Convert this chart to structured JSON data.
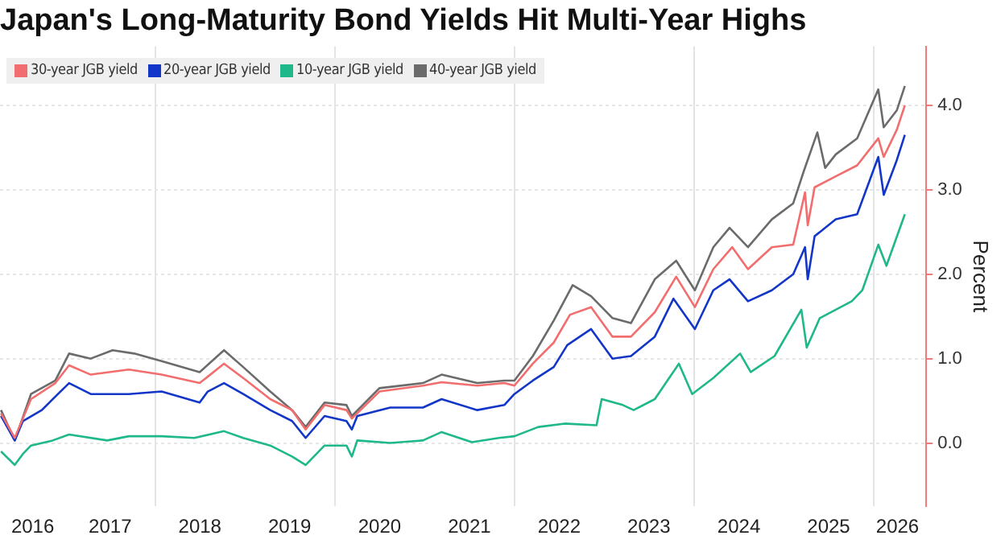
{
  "chart_data": {
    "type": "line",
    "title": "Japan's Long-Maturity Bond Yields Hit Multi-Year Highs",
    "ylabel": "Percent",
    "xlim": [
      "2016-04-10",
      "2026-08-03"
    ],
    "xticks": [
      {
        "value": "2016-08-21",
        "label": "2016"
      },
      {
        "value": "2017-07-02",
        "label": "2017"
      },
      {
        "value": "2018-01-01",
        "label": null
      },
      {
        "value": "2018-07-02",
        "label": "2018"
      },
      {
        "value": "2019-07-02",
        "label": "2019"
      },
      {
        "value": "2020-01-01",
        "label": null
      },
      {
        "value": "2020-07-02",
        "label": "2020"
      },
      {
        "value": "2021-07-02",
        "label": "2021"
      },
      {
        "value": "2022-01-01",
        "label": null
      },
      {
        "value": "2022-07-02",
        "label": "2022"
      },
      {
        "value": "2023-07-02",
        "label": "2023"
      },
      {
        "value": "2024-01-01",
        "label": null
      },
      {
        "value": "2024-07-02",
        "label": "2024"
      },
      {
        "value": "2025-07-02",
        "label": "2025"
      },
      {
        "value": "2026-01-01",
        "label": null
      },
      {
        "value": "2026-04-08",
        "label": "2026"
      }
    ],
    "ylim": [
      -0.75,
      4.7
    ],
    "yticks": [
      {
        "value": 0,
        "label": "0.0"
      },
      {
        "value": 1,
        "label": "1.0"
      },
      {
        "value": 2,
        "label": "2.0"
      },
      {
        "value": 3,
        "label": "3.0"
      },
      {
        "value": 4,
        "label": "4.0"
      }
    ],
    "grid": true,
    "legend": "top left",
    "series": [
      {
        "name": "30-year JGB yield",
        "color": "#f26d6d",
        "x": [
          "2016-04-14",
          "2016-06-09",
          "2016-08-14",
          "2016-11-21",
          "2017-01-16",
          "2017-04-14",
          "2017-09-16",
          "2018-01-27",
          "2018-07-01",
          "2018-10-08",
          "2018-12-25",
          "2019-04-14",
          "2019-07-12",
          "2019-09-05",
          "2019-11-21",
          "2020-02-18",
          "2020-03-11",
          "2020-07-01",
          "2020-12-25",
          "2021-03-11",
          "2021-08-03",
          "2021-11-21",
          "2022-01-01",
          "2022-03-17",
          "2022-06-10",
          "2022-08-15",
          "2022-11-09",
          "2023-02-04",
          "2023-04-20",
          "2023-07-26",
          "2023-10-21",
          "2024-01-05",
          "2024-03-20",
          "2024-06-05",
          "2024-08-08",
          "2024-11-13",
          "2025-02-08",
          "2025-03-28",
          "2025-04-08",
          "2025-05-06",
          "2025-07-31",
          "2025-10-26",
          "2026-01-20",
          "2026-02-11",
          "2026-04-05",
          "2026-05-08"
        ],
        "values": [
          0.35,
          0.06,
          0.52,
          0.71,
          0.92,
          0.81,
          0.87,
          0.81,
          0.71,
          0.94,
          0.77,
          0.52,
          0.39,
          0.16,
          0.45,
          0.39,
          0.29,
          0.61,
          0.68,
          0.72,
          0.68,
          0.71,
          0.68,
          0.94,
          1.19,
          1.52,
          1.61,
          1.26,
          1.26,
          1.55,
          1.97,
          1.61,
          2.06,
          2.32,
          2.06,
          2.32,
          2.35,
          2.97,
          2.58,
          3.03,
          3.16,
          3.29,
          3.61,
          3.39,
          3.71,
          4.0
        ]
      },
      {
        "name": "20-year JGB yield",
        "color": "#1236c8",
        "x": [
          "2016-04-14",
          "2016-06-09",
          "2016-07-12",
          "2016-09-27",
          "2016-11-21",
          "2017-01-16",
          "2017-04-14",
          "2017-09-16",
          "2018-01-27",
          "2018-07-01",
          "2018-08-03",
          "2018-10-08",
          "2018-12-25",
          "2019-04-14",
          "2019-07-12",
          "2019-09-05",
          "2019-11-21",
          "2020-02-18",
          "2020-03-11",
          "2020-04-02",
          "2020-08-14",
          "2020-12-25",
          "2021-03-11",
          "2021-08-03",
          "2021-11-21",
          "2022-01-01",
          "2022-03-17",
          "2022-06-10",
          "2022-08-04",
          "2022-11-09",
          "2023-02-04",
          "2023-04-20",
          "2023-07-26",
          "2023-10-10",
          "2024-01-05",
          "2024-03-20",
          "2024-05-25",
          "2024-08-08",
          "2024-11-13",
          "2025-02-08",
          "2025-03-28",
          "2025-04-08",
          "2025-05-06",
          "2025-07-31",
          "2025-10-26",
          "2026-01-20",
          "2026-02-11",
          "2026-04-05",
          "2026-05-08"
        ],
        "values": [
          0.32,
          0.03,
          0.26,
          0.39,
          0.55,
          0.71,
          0.58,
          0.58,
          0.61,
          0.48,
          0.61,
          0.71,
          0.58,
          0.39,
          0.26,
          0.06,
          0.32,
          0.26,
          0.16,
          0.32,
          0.42,
          0.42,
          0.52,
          0.39,
          0.45,
          0.58,
          0.74,
          0.9,
          1.16,
          1.35,
          1.0,
          1.03,
          1.26,
          1.71,
          1.35,
          1.81,
          1.94,
          1.68,
          1.81,
          2.0,
          2.32,
          1.94,
          2.45,
          2.65,
          2.71,
          3.39,
          2.94,
          3.35,
          3.65
        ]
      },
      {
        "name": "10-year JGB yield",
        "color": "#1fb88a",
        "x": [
          "2016-04-14",
          "2016-06-09",
          "2016-07-12",
          "2016-08-14",
          "2016-11-10",
          "2017-01-16",
          "2017-06-20",
          "2017-09-16",
          "2018-01-27",
          "2018-06-09",
          "2018-10-08",
          "2018-12-25",
          "2019-04-14",
          "2019-07-12",
          "2019-09-05",
          "2019-11-21",
          "2020-02-18",
          "2020-03-11",
          "2020-04-02",
          "2020-08-14",
          "2020-12-25",
          "2021-03-11",
          "2021-07-12",
          "2021-10-30",
          "2022-01-01",
          "2022-04-08",
          "2022-07-24",
          "2022-12-01",
          "2022-12-22",
          "2023-03-18",
          "2023-05-01",
          "2023-07-26",
          "2023-11-01",
          "2023-12-25",
          "2024-03-20",
          "2024-07-07",
          "2024-08-19",
          "2024-11-24",
          "2025-03-13",
          "2025-04-04",
          "2025-05-27",
          "2025-10-04",
          "2025-11-16",
          "2026-01-20",
          "2026-02-22",
          "2026-05-08"
        ],
        "values": [
          -0.1,
          -0.26,
          -0.13,
          -0.03,
          0.03,
          0.1,
          0.03,
          0.08,
          0.08,
          0.06,
          0.14,
          0.06,
          -0.03,
          -0.16,
          -0.26,
          -0.03,
          -0.03,
          -0.16,
          0.03,
          0.0,
          0.03,
          0.13,
          0.01,
          0.06,
          0.08,
          0.19,
          0.23,
          0.21,
          0.52,
          0.45,
          0.39,
          0.52,
          0.94,
          0.58,
          0.77,
          1.06,
          0.84,
          1.03,
          1.58,
          1.13,
          1.48,
          1.68,
          1.81,
          2.35,
          2.1,
          2.71
        ]
      },
      {
        "name": "40-year JGB yield",
        "color": "#6b6b6b",
        "x": [
          "2016-04-14",
          "2016-06-09",
          "2016-08-14",
          "2016-11-21",
          "2017-01-16",
          "2017-04-14",
          "2017-07-12",
          "2017-10-08",
          "2018-01-27",
          "2018-07-01",
          "2018-10-08",
          "2018-12-25",
          "2019-04-14",
          "2019-07-12",
          "2019-09-05",
          "2019-11-21",
          "2020-02-18",
          "2020-03-11",
          "2020-07-01",
          "2020-12-25",
          "2021-03-11",
          "2021-08-03",
          "2021-11-21",
          "2022-01-01",
          "2022-03-17",
          "2022-06-10",
          "2022-08-26",
          "2022-11-09",
          "2023-02-04",
          "2023-04-20",
          "2023-07-26",
          "2023-10-21",
          "2024-01-05",
          "2024-03-20",
          "2024-05-25",
          "2024-08-08",
          "2024-11-13",
          "2025-02-08",
          "2025-03-24",
          "2025-05-17",
          "2025-06-18",
          "2025-07-31",
          "2025-10-26",
          "2026-01-20",
          "2026-02-11",
          "2026-04-05",
          "2026-05-08"
        ],
        "values": [
          0.39,
          0.03,
          0.58,
          0.74,
          1.06,
          1.0,
          1.1,
          1.06,
          0.97,
          0.84,
          1.1,
          0.9,
          0.61,
          0.39,
          0.19,
          0.48,
          0.45,
          0.32,
          0.65,
          0.71,
          0.81,
          0.71,
          0.74,
          0.74,
          1.03,
          1.45,
          1.87,
          1.74,
          1.48,
          1.42,
          1.94,
          2.16,
          1.81,
          2.32,
          2.55,
          2.32,
          2.65,
          2.84,
          3.23,
          3.68,
          3.26,
          3.42,
          3.61,
          4.19,
          3.74,
          3.94,
          4.23
        ]
      }
    ]
  }
}
